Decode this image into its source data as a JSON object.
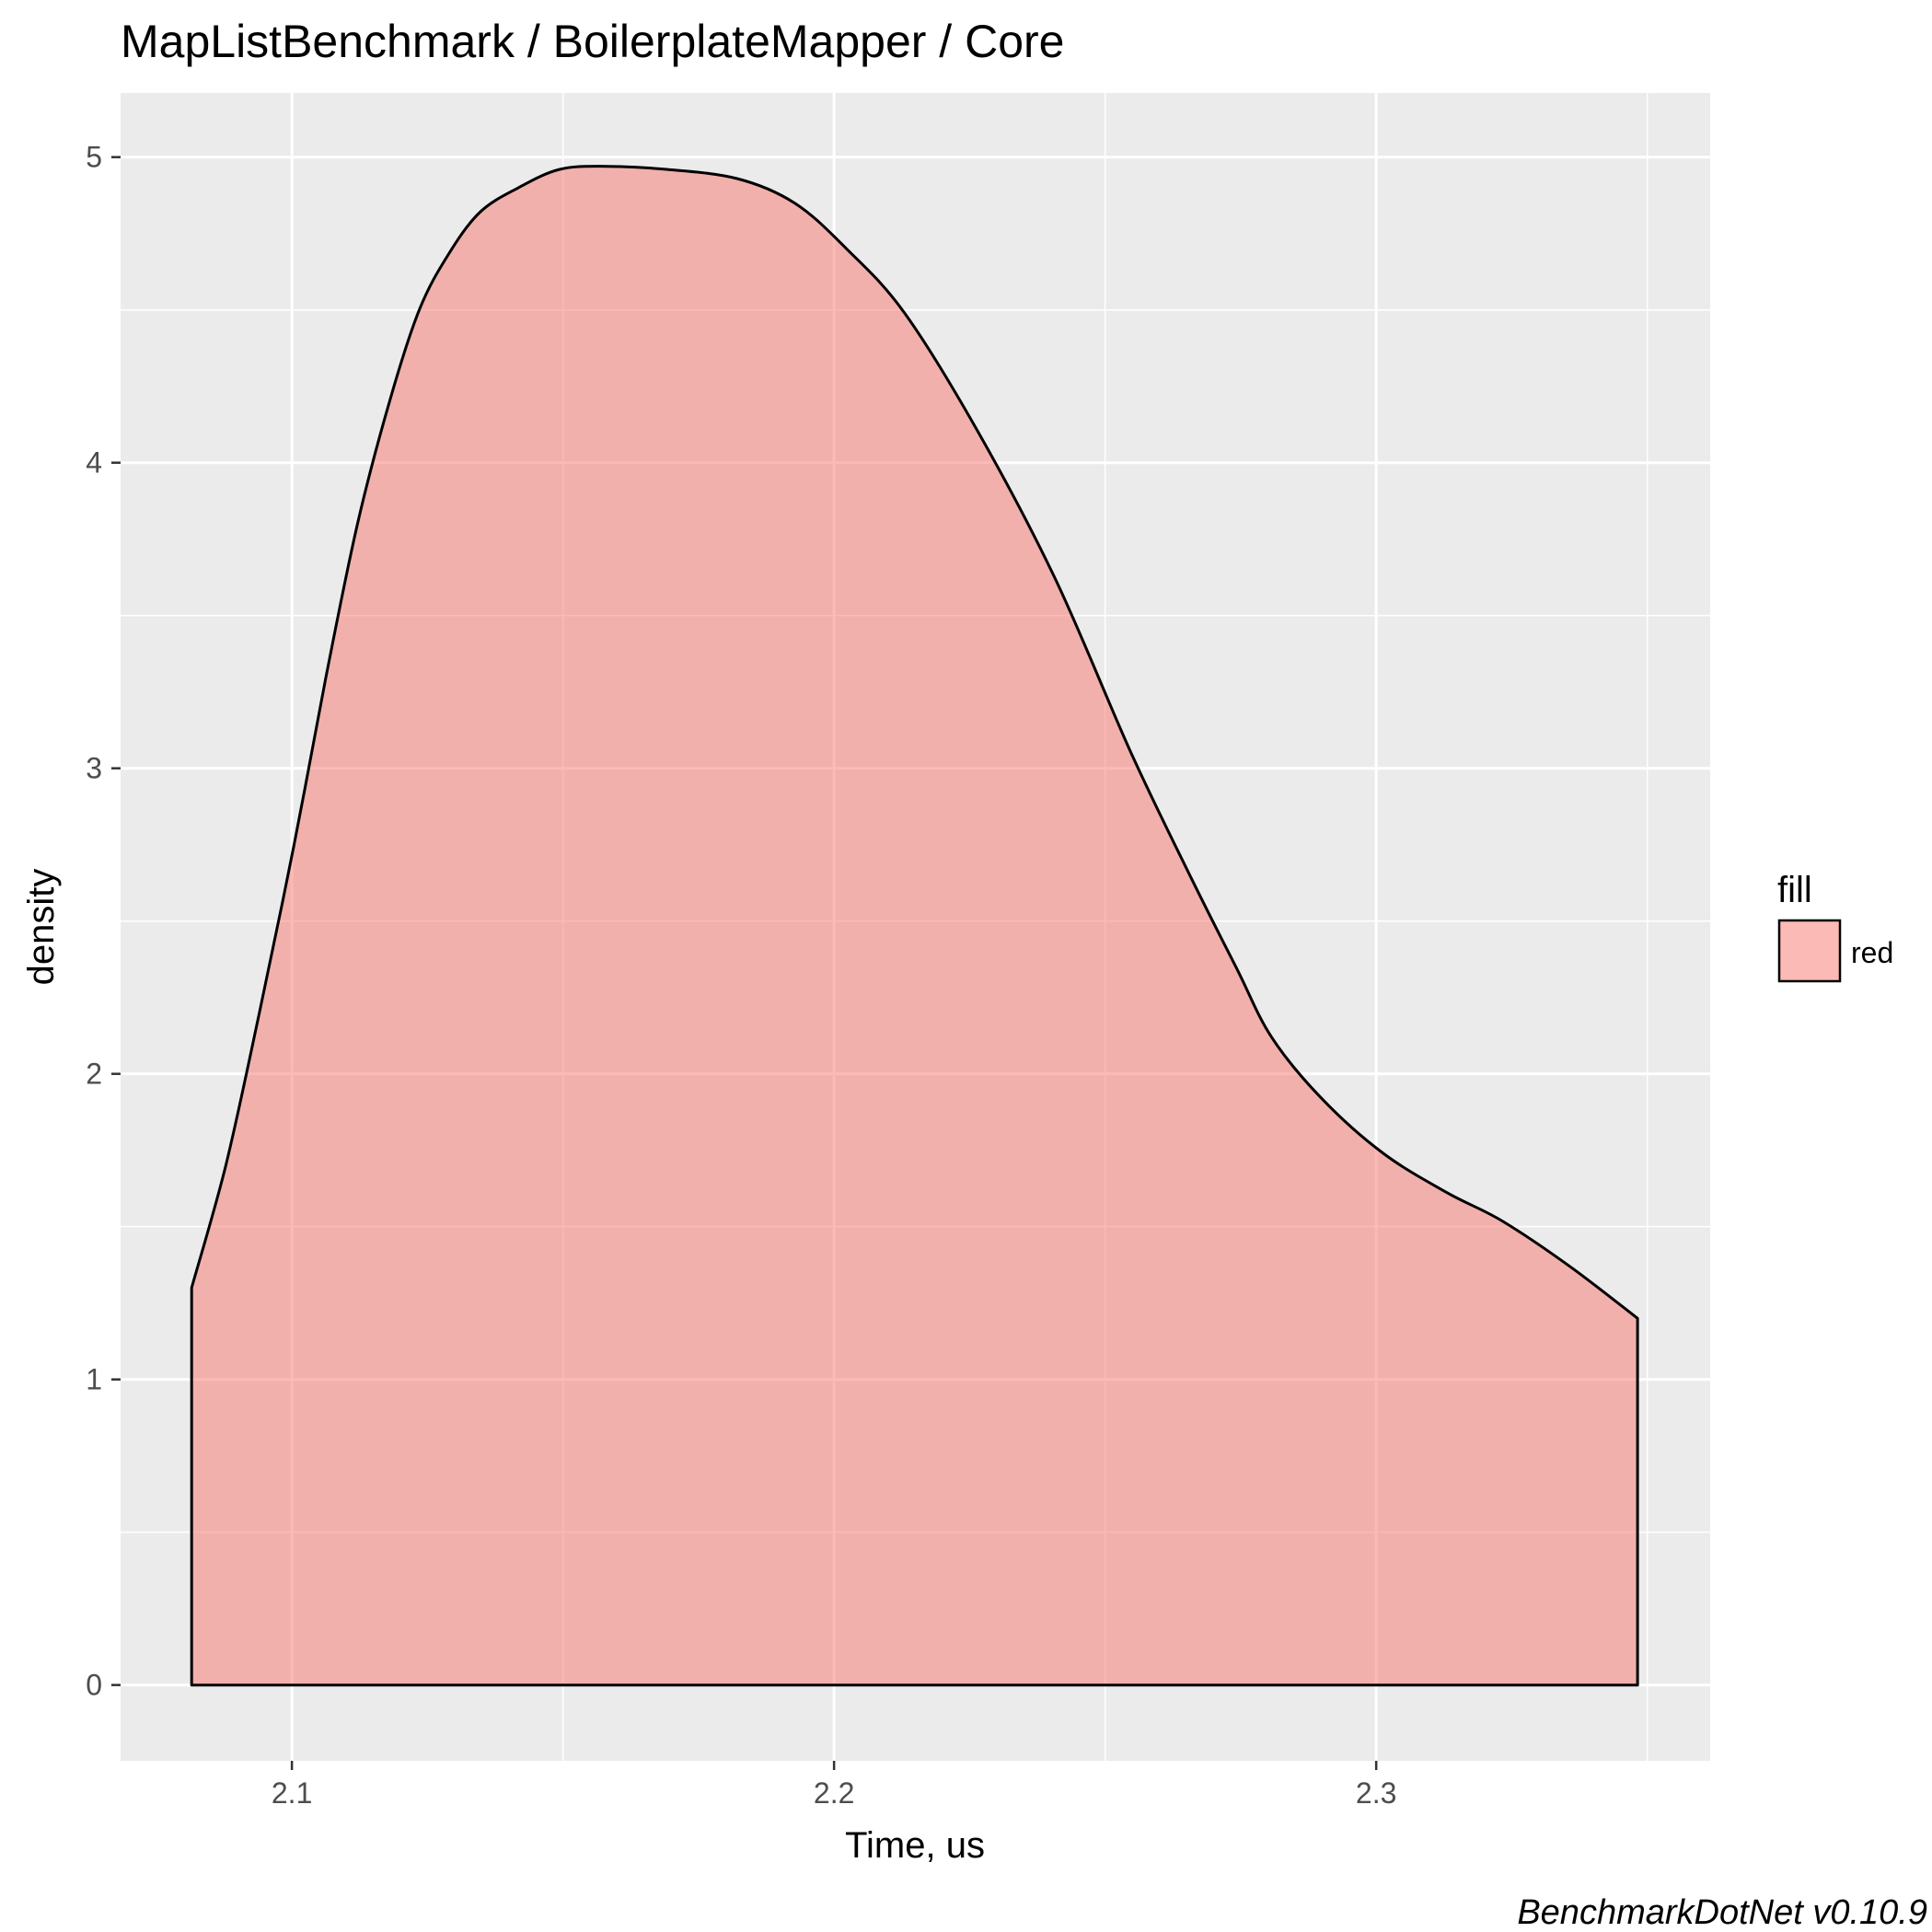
{
  "chart_data": {
    "type": "area",
    "title": "MapListBenchmark / BoilerplateMapper / Core",
    "xlabel": "Time, us",
    "ylabel": "density",
    "xlim": [
      2.0684,
      2.3616
    ],
    "ylim": [
      -0.248,
      5.21
    ],
    "x_ticks": [
      2.1,
      2.2,
      2.3
    ],
    "y_ticks": [
      0,
      1,
      2,
      3,
      4,
      5
    ],
    "grid": true,
    "legend": {
      "title": "fill",
      "position": "right",
      "entries": [
        "red"
      ]
    },
    "series": [
      {
        "name": "red",
        "fill_color": "#f8766d",
        "fill_opacity": 0.5,
        "outline_color": "#000000",
        "x": [
          2.0815,
          2.0878,
          2.094,
          2.1004,
          2.1063,
          2.1121,
          2.118,
          2.1235,
          2.1288,
          2.1347,
          2.1418,
          2.1494,
          2.158,
          2.1691,
          2.1821,
          2.1927,
          2.2023,
          2.213,
          2.2266,
          2.2408,
          2.2548,
          2.2659,
          2.2744,
          2.2807,
          2.2899,
          2.3013,
          2.3132,
          2.3231,
          2.3357,
          2.3482
        ],
        "y": [
          1.3,
          1.7,
          2.2,
          2.75,
          3.3,
          3.8,
          4.2,
          4.5,
          4.68,
          4.82,
          4.9,
          4.96,
          4.97,
          4.96,
          4.93,
          4.85,
          4.7,
          4.49,
          4.1,
          3.62,
          3.05,
          2.64,
          2.34,
          2.12,
          1.92,
          1.74,
          1.61,
          1.52,
          1.37,
          1.2
        ]
      }
    ]
  },
  "caption": "BenchmarkDotNet v0.10.9"
}
